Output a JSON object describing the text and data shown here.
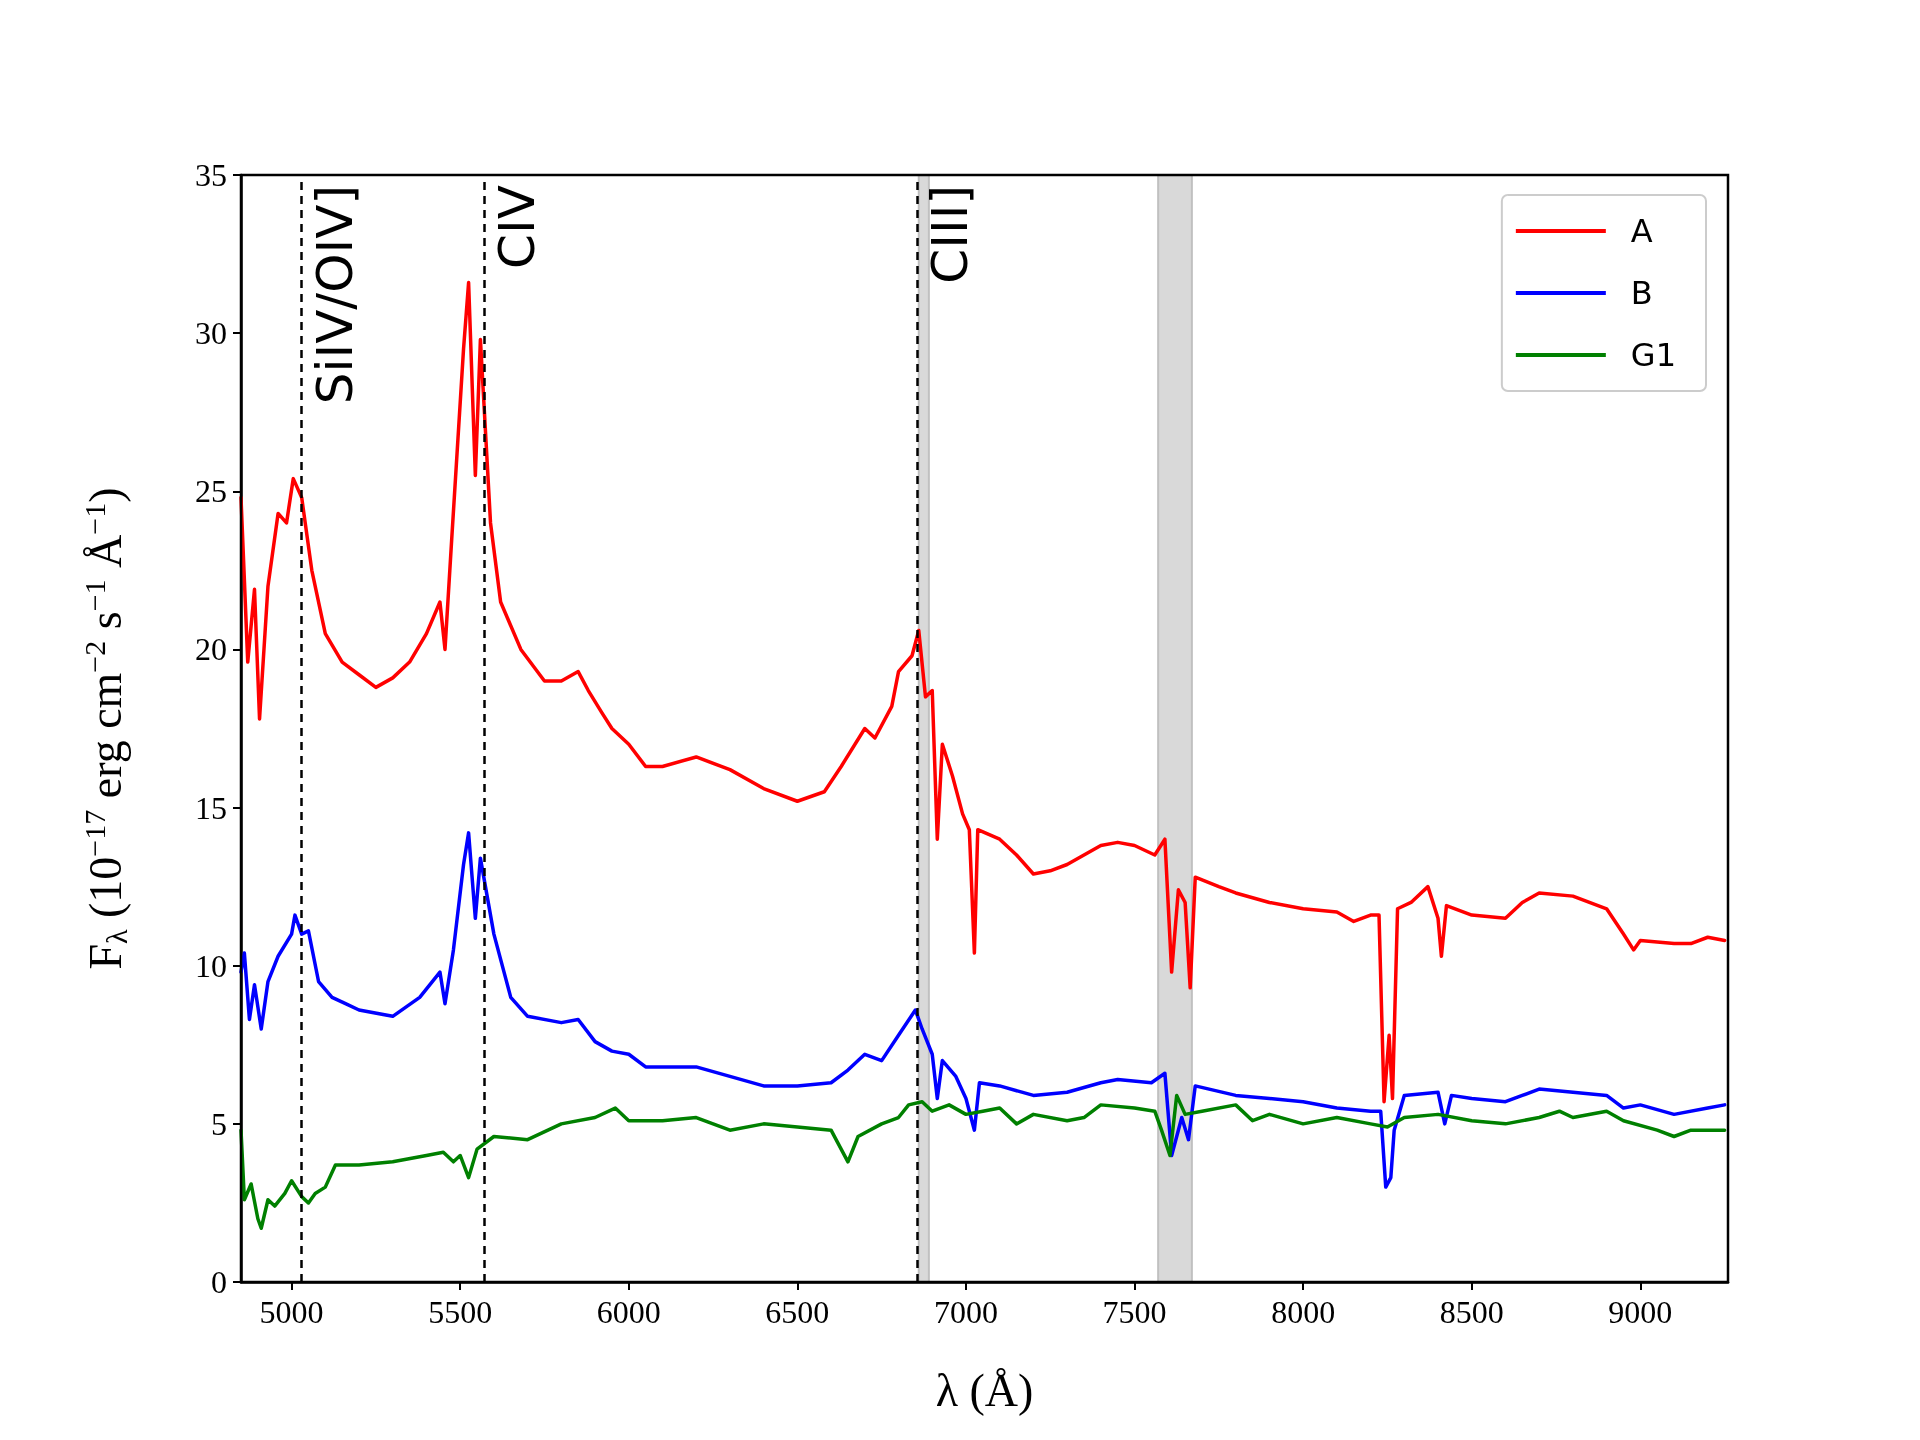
{
  "chart_data": {
    "type": "line",
    "xlabel": "λ (Å)",
    "ylabel": "F$_{λ}$ (10$^{−17}$ erg cm$^{−2}$ s$^{−1}$ Å$^{−1}$)",
    "xlim": [
      4850,
      9260
    ],
    "xticks": [
      5000,
      5500,
      6000,
      6500,
      7000,
      7500,
      8000,
      8500,
      9000
    ],
    "ylim": [
      0,
      35
    ],
    "yticks": [
      0,
      5,
      10,
      15,
      20,
      25,
      30,
      35
    ],
    "grid": false,
    "legend": "top right",
    "line_style": "solid",
    "marker": "none",
    "ref_lines": [
      {
        "axis": "x",
        "value": 5030,
        "label": "SiIV/OIV]",
        "color": "#000000",
        "line_style": "dashed"
      },
      {
        "axis": "x",
        "value": 5570,
        "label": "CIV",
        "color": "#000000",
        "line_style": "dashed"
      },
      {
        "axis": "x",
        "value": 6855,
        "label": "CIII]",
        "color": "#000000",
        "line_style": "dashed"
      }
    ],
    "bands": [
      {
        "axis": "x",
        "from": 6860,
        "to": 6890,
        "color": "#d9d9d9"
      },
      {
        "axis": "x",
        "from": 7570,
        "to": 7670,
        "color": "#d9d9d9"
      }
    ],
    "series": [
      {
        "name": "A",
        "color": "#ff0000",
        "x": [
          4850,
          4870,
          4890,
          4905,
          4930,
          4960,
          4985,
          5005,
          5030,
          5060,
          5100,
          5150,
          5200,
          5250,
          5300,
          5350,
          5400,
          5440,
          5455,
          5475,
          5510,
          5525,
          5545,
          5560,
          5590,
          5620,
          5680,
          5750,
          5800,
          5850,
          5880,
          5920,
          5950,
          6000,
          6050,
          6100,
          6200,
          6300,
          6400,
          6500,
          6580,
          6630,
          6700,
          6730,
          6780,
          6800,
          6840,
          6860,
          6880,
          6900,
          6915,
          6930,
          6960,
          6990,
          7010,
          7025,
          7035,
          7100,
          7150,
          7200,
          7250,
          7300,
          7400,
          7450,
          7500,
          7560,
          7590,
          7610,
          7630,
          7650,
          7665,
          7680,
          7750,
          7800,
          7900,
          8000,
          8100,
          8150,
          8200,
          8225,
          8240,
          8255,
          8265,
          8280,
          8320,
          8370,
          8400,
          8410,
          8425,
          8500,
          8600,
          8650,
          8700,
          8800,
          8900,
          8950,
          8980,
          9000,
          9100,
          9150,
          9200,
          9250
        ],
        "values": [
          24.8,
          19.6,
          21.9,
          17.8,
          22.0,
          24.3,
          24.0,
          25.4,
          24.8,
          22.5,
          20.5,
          19.6,
          19.2,
          18.8,
          19.1,
          19.6,
          20.5,
          21.5,
          20.0,
          23.5,
          29.5,
          31.6,
          25.5,
          29.8,
          24.0,
          21.5,
          20.0,
          19.0,
          19.0,
          19.3,
          18.7,
          18.0,
          17.5,
          17.0,
          16.3,
          16.3,
          16.6,
          16.2,
          15.6,
          15.2,
          15.5,
          16.3,
          17.5,
          17.2,
          18.2,
          19.3,
          19.8,
          20.6,
          18.5,
          18.7,
          14.0,
          17.0,
          16.0,
          14.8,
          14.3,
          10.4,
          14.3,
          14.0,
          13.5,
          12.9,
          13.0,
          13.2,
          13.8,
          13.9,
          13.8,
          13.5,
          14.0,
          9.8,
          12.4,
          12.0,
          9.3,
          12.8,
          12.5,
          12.3,
          12.0,
          11.8,
          11.7,
          11.4,
          11.6,
          11.6,
          5.7,
          7.8,
          5.8,
          11.8,
          12.0,
          12.5,
          11.5,
          10.3,
          11.9,
          11.6,
          11.5,
          12.0,
          12.3,
          12.2,
          11.8,
          11.0,
          10.5,
          10.8,
          10.7,
          10.7,
          10.9,
          10.8
        ]
      },
      {
        "name": "B",
        "color": "#0000ff",
        "x": [
          4850,
          4860,
          4875,
          4890,
          4910,
          4930,
          4960,
          5000,
          5010,
          5030,
          5050,
          5080,
          5120,
          5160,
          5200,
          5300,
          5380,
          5440,
          5455,
          5480,
          5510,
          5525,
          5545,
          5560,
          5600,
          5650,
          5700,
          5800,
          5850,
          5900,
          5950,
          6000,
          6050,
          6200,
          6300,
          6400,
          6500,
          6600,
          6650,
          6700,
          6750,
          6800,
          6850,
          6870,
          6900,
          6915,
          6930,
          6970,
          7000,
          7025,
          7040,
          7100,
          7200,
          7300,
          7400,
          7450,
          7550,
          7590,
          7610,
          7640,
          7660,
          7680,
          7800,
          7900,
          8000,
          8100,
          8200,
          8230,
          8245,
          8260,
          8270,
          8300,
          8400,
          8420,
          8440,
          8500,
          8600,
          8650,
          8700,
          8800,
          8900,
          8950,
          9000,
          9100,
          9200,
          9250
        ],
        "values": [
          9.8,
          10.4,
          8.3,
          9.4,
          8.0,
          9.5,
          10.3,
          11.0,
          11.6,
          11.0,
          11.1,
          9.5,
          9.0,
          8.8,
          8.6,
          8.4,
          9.0,
          9.8,
          8.8,
          10.5,
          13.2,
          14.2,
          11.5,
          13.4,
          11.0,
          9.0,
          8.4,
          8.2,
          8.3,
          7.6,
          7.3,
          7.2,
          6.8,
          6.8,
          6.5,
          6.2,
          6.2,
          6.3,
          6.7,
          7.2,
          7.0,
          7.8,
          8.6,
          8.0,
          7.2,
          5.8,
          7.0,
          6.5,
          5.8,
          4.8,
          6.3,
          6.2,
          5.9,
          6.0,
          6.3,
          6.4,
          6.3,
          6.6,
          4.0,
          5.2,
          4.5,
          6.2,
          5.9,
          5.8,
          5.7,
          5.5,
          5.4,
          5.4,
          3.0,
          3.3,
          4.8,
          5.9,
          6.0,
          5.0,
          5.9,
          5.8,
          5.7,
          5.9,
          6.1,
          6.0,
          5.9,
          5.5,
          5.6,
          5.3,
          5.5,
          5.6
        ]
      },
      {
        "name": "G1",
        "color": "#008000",
        "x": [
          4850,
          4860,
          4880,
          4900,
          4910,
          4930,
          4950,
          4980,
          5000,
          5030,
          5050,
          5070,
          5100,
          5130,
          5200,
          5300,
          5400,
          5450,
          5480,
          5500,
          5525,
          5550,
          5600,
          5700,
          5800,
          5900,
          5960,
          6000,
          6100,
          6200,
          6300,
          6400,
          6500,
          6600,
          6620,
          6650,
          6680,
          6750,
          6800,
          6830,
          6870,
          6900,
          6950,
          7000,
          7050,
          7100,
          7150,
          7200,
          7300,
          7350,
          7400,
          7500,
          7560,
          7580,
          7605,
          7625,
          7650,
          7700,
          7800,
          7850,
          7900,
          8000,
          8100,
          8200,
          8250,
          8300,
          8400,
          8500,
          8600,
          8700,
          8760,
          8800,
          8900,
          8950,
          9050,
          9100,
          9150,
          9250
        ],
        "values": [
          4.8,
          2.6,
          3.1,
          2.0,
          1.7,
          2.6,
          2.4,
          2.8,
          3.2,
          2.7,
          2.5,
          2.8,
          3.0,
          3.7,
          3.7,
          3.8,
          4.0,
          4.1,
          3.8,
          4.0,
          3.3,
          4.2,
          4.6,
          4.5,
          5.0,
          5.2,
          5.5,
          5.1,
          5.1,
          5.2,
          4.8,
          5.0,
          4.9,
          4.8,
          4.4,
          3.8,
          4.6,
          5.0,
          5.2,
          5.6,
          5.7,
          5.4,
          5.6,
          5.3,
          5.4,
          5.5,
          5.0,
          5.3,
          5.1,
          5.2,
          5.6,
          5.5,
          5.4,
          4.8,
          4.0,
          5.9,
          5.3,
          5.4,
          5.6,
          5.1,
          5.3,
          5.0,
          5.2,
          5.0,
          4.9,
          5.2,
          5.3,
          5.1,
          5.0,
          5.2,
          5.4,
          5.2,
          5.4,
          5.1,
          4.8,
          4.6,
          4.8,
          4.8
        ]
      }
    ]
  }
}
